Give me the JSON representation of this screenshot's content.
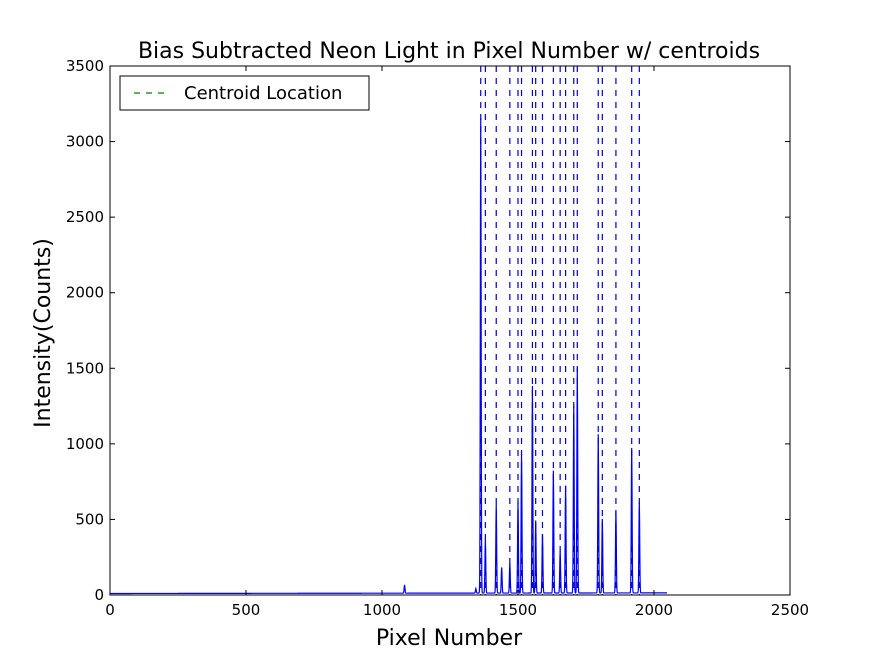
{
  "chart_data": {
    "type": "line",
    "title": "Bias Subtracted Neon Light in Pixel Number w/ centroids",
    "xlabel": "Pixel Number",
    "ylabel": "Intensity(Counts)",
    "xlim": [
      0,
      2500
    ],
    "ylim": [
      0,
      3500
    ],
    "xticks": [
      0,
      500,
      1000,
      1500,
      2000,
      2500
    ],
    "yticks": [
      0,
      500,
      1000,
      1500,
      2000,
      2500,
      3000,
      3500
    ],
    "legend": {
      "placement": "upper-left",
      "entries": [
        "Centroid Location"
      ]
    },
    "series": [
      {
        "type": "spectrum",
        "color": "#0000ff",
        "x_range": [
          0,
          2048
        ],
        "baseline_start": 10,
        "baseline_end": 14,
        "peaks": [
          {
            "x": 1083,
            "y": 55
          },
          {
            "x": 1345,
            "y": 30
          },
          {
            "x": 1363,
            "y": 3140
          },
          {
            "x": 1380,
            "y": 360
          },
          {
            "x": 1420,
            "y": 590
          },
          {
            "x": 1440,
            "y": 170
          },
          {
            "x": 1470,
            "y": 200
          },
          {
            "x": 1500,
            "y": 600
          },
          {
            "x": 1513,
            "y": 920
          },
          {
            "x": 1553,
            "y": 1370
          },
          {
            "x": 1565,
            "y": 480
          },
          {
            "x": 1590,
            "y": 390
          },
          {
            "x": 1630,
            "y": 810
          },
          {
            "x": 1655,
            "y": 280
          },
          {
            "x": 1675,
            "y": 710
          },
          {
            "x": 1705,
            "y": 1240
          },
          {
            "x": 1718,
            "y": 1490
          },
          {
            "x": 1795,
            "y": 1050
          },
          {
            "x": 1810,
            "y": 490
          },
          {
            "x": 1860,
            "y": 540
          },
          {
            "x": 1918,
            "y": 960
          },
          {
            "x": 1946,
            "y": 600
          }
        ]
      },
      {
        "name": "Centroid Location",
        "type": "vlines",
        "color": "#0000cc",
        "legend_color": "#008000",
        "x": [
          1363,
          1380,
          1420,
          1470,
          1500,
          1513,
          1553,
          1565,
          1590,
          1630,
          1655,
          1675,
          1705,
          1718,
          1795,
          1810,
          1860,
          1918,
          1946
        ]
      }
    ]
  }
}
